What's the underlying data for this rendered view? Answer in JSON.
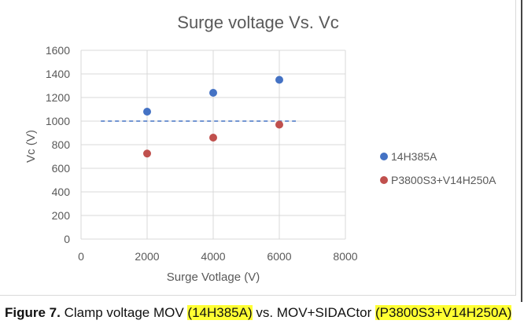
{
  "chart_data": {
    "type": "scatter",
    "title": "Surge voltage Vs. Vc",
    "xlabel": "Surge Votlage (V)",
    "ylabel": "Vc (V)",
    "xlim": [
      0,
      8000
    ],
    "ylim": [
      0,
      1600
    ],
    "xticks": [
      "0",
      "2000",
      "4000",
      "6000",
      "8000"
    ],
    "yticks": [
      "0",
      "200",
      "400",
      "600",
      "800",
      "1000",
      "1200",
      "1400",
      "1600"
    ],
    "grid": "vertical and horizontal",
    "legend_position": "right",
    "series": [
      {
        "name": "14H385A",
        "color": "#4472c4",
        "x": [
          2000,
          4000,
          6000
        ],
        "y": [
          1080,
          1240,
          1350
        ]
      },
      {
        "name": "P3800S3+V14H250A",
        "color": "#c0504d",
        "x": [
          2000,
          4000,
          6000
        ],
        "y": [
          725,
          860,
          970
        ]
      }
    ],
    "reference_line": {
      "x": [
        600,
        6500
      ],
      "y": 1000,
      "style": "dashed",
      "color": "#4472c4"
    }
  },
  "caption": {
    "label": "Figure 7.",
    "text1": " Clamp voltage MOV ",
    "hl1": "(14H385A)",
    "text2": " vs. MOV+SIDACtor ",
    "hl2": "(P3800S3+V14H250A)"
  }
}
